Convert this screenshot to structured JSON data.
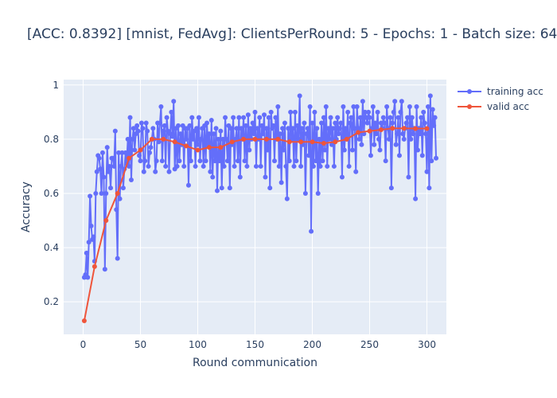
{
  "chart_data": {
    "type": "line",
    "title": "[ACC: 0.8392] [mnist, FedAvg]: ClientsPerRound: 5 - Epochs: 1 - Batch size: 64",
    "xlabel": "Round communication",
    "ylabel": "Accuracy",
    "xlim": [
      -17,
      317
    ],
    "ylim": [
      0.08,
      1.02
    ],
    "xticks": [
      0,
      50,
      100,
      150,
      200,
      250,
      300
    ],
    "yticks": [
      0.2,
      0.4,
      0.6,
      0.8,
      1
    ],
    "grid": true,
    "legend_position": "top-right",
    "series": [
      {
        "name": "training acc",
        "color": "#636efa",
        "x_start": 1,
        "x_step": 1,
        "values": [
          0.29,
          0.3,
          0.38,
          0.29,
          0.42,
          0.59,
          0.48,
          0.43,
          0.44,
          0.35,
          0.6,
          0.68,
          0.74,
          0.73,
          0.69,
          0.6,
          0.75,
          0.66,
          0.32,
          0.6,
          0.77,
          0.68,
          0.7,
          0.62,
          0.73,
          0.73,
          0.7,
          0.83,
          0.54,
          0.36,
          0.75,
          0.58,
          0.7,
          0.75,
          0.62,
          0.69,
          0.75,
          0.71,
          0.8,
          0.7,
          0.88,
          0.65,
          0.8,
          0.84,
          0.76,
          0.82,
          0.85,
          0.83,
          0.74,
          0.72,
          0.86,
          0.84,
          0.68,
          0.72,
          0.86,
          0.83,
          0.7,
          0.75,
          0.77,
          0.8,
          0.84,
          0.8,
          0.68,
          0.72,
          0.86,
          0.79,
          0.86,
          0.92,
          0.72,
          0.83,
          0.85,
          0.7,
          0.88,
          0.83,
          0.68,
          0.82,
          0.9,
          0.81,
          0.94,
          0.69,
          0.84,
          0.7,
          0.85,
          0.72,
          0.82,
          0.78,
          0.85,
          0.7,
          0.84,
          0.8,
          0.84,
          0.63,
          0.85,
          0.72,
          0.88,
          0.8,
          0.83,
          0.7,
          0.84,
          0.78,
          0.88,
          0.72,
          0.8,
          0.84,
          0.7,
          0.85,
          0.72,
          0.86,
          0.78,
          0.82,
          0.68,
          0.87,
          0.66,
          0.82,
          0.72,
          0.84,
          0.61,
          0.8,
          0.72,
          0.83,
          0.62,
          0.8,
          0.7,
          0.88,
          0.8,
          0.72,
          0.85,
          0.62,
          0.84,
          0.78,
          0.88,
          0.7,
          0.8,
          0.84,
          0.72,
          0.88,
          0.66,
          0.84,
          0.8,
          0.88,
          0.72,
          0.85,
          0.7,
          0.89,
          0.76,
          0.84,
          0.8,
          0.86,
          0.82,
          0.9,
          0.7,
          0.84,
          0.8,
          0.88,
          0.7,
          0.85,
          0.82,
          0.89,
          0.66,
          0.84,
          0.76,
          0.88,
          0.62,
          0.9,
          0.84,
          0.85,
          0.72,
          0.88,
          0.8,
          0.92,
          0.7,
          0.82,
          0.64,
          0.84,
          0.76,
          0.86,
          0.7,
          0.58,
          0.84,
          0.72,
          0.9,
          0.8,
          0.84,
          0.7,
          0.9,
          0.72,
          0.85,
          0.8,
          0.96,
          0.7,
          0.84,
          0.78,
          0.86,
          0.6,
          0.82,
          0.84,
          0.74,
          0.92,
          0.46,
          0.86,
          0.7,
          0.9,
          0.72,
          0.84,
          0.6,
          0.8,
          0.7,
          0.86,
          0.72,
          0.88,
          0.76,
          0.92,
          0.7,
          0.84,
          0.8,
          0.88,
          0.78,
          0.84,
          0.7,
          0.86,
          0.8,
          0.88,
          0.82,
          0.84,
          0.86,
          0.66,
          0.92,
          0.76,
          0.84,
          0.8,
          0.9,
          0.7,
          0.86,
          0.88,
          0.76,
          0.92,
          0.84,
          0.68,
          0.92,
          0.84,
          0.8,
          0.88,
          0.78,
          0.94,
          0.82,
          0.9,
          0.88,
          0.86,
          0.9,
          0.88,
          0.74,
          0.84,
          0.92,
          0.78,
          0.86,
          0.82,
          0.9,
          0.8,
          0.76,
          0.86,
          0.84,
          0.88,
          0.86,
          0.72,
          0.92,
          0.84,
          0.8,
          0.88,
          0.62,
          0.86,
          0.9,
          0.94,
          0.78,
          0.82,
          0.88,
          0.74,
          0.9,
          0.94,
          0.82,
          0.8,
          0.84,
          0.86,
          0.88,
          0.66,
          0.92,
          0.8,
          0.88,
          0.82,
          0.84,
          0.58,
          0.92,
          0.76,
          0.84,
          0.82,
          0.88,
          0.74,
          0.9,
          0.86,
          0.82,
          0.68,
          0.92,
          0.62,
          0.96,
          0.72,
          0.91,
          0.85,
          0.88,
          0.73
        ]
      },
      {
        "name": "valid acc",
        "color": "#ef553b",
        "x": [
          1,
          10,
          20,
          30,
          40,
          50,
          60,
          70,
          80,
          90,
          100,
          110,
          120,
          130,
          140,
          150,
          160,
          170,
          180,
          190,
          200,
          210,
          220,
          230,
          240,
          250,
          260,
          270,
          280,
          290,
          300
        ],
        "values": [
          0.13,
          0.33,
          0.5,
          0.6,
          0.73,
          0.76,
          0.8,
          0.8,
          0.79,
          0.775,
          0.76,
          0.77,
          0.77,
          0.79,
          0.8,
          0.8,
          0.8,
          0.8,
          0.79,
          0.79,
          0.79,
          0.785,
          0.79,
          0.8,
          0.825,
          0.83,
          0.835,
          0.84,
          0.84,
          0.8392,
          0.8392
        ]
      }
    ]
  }
}
